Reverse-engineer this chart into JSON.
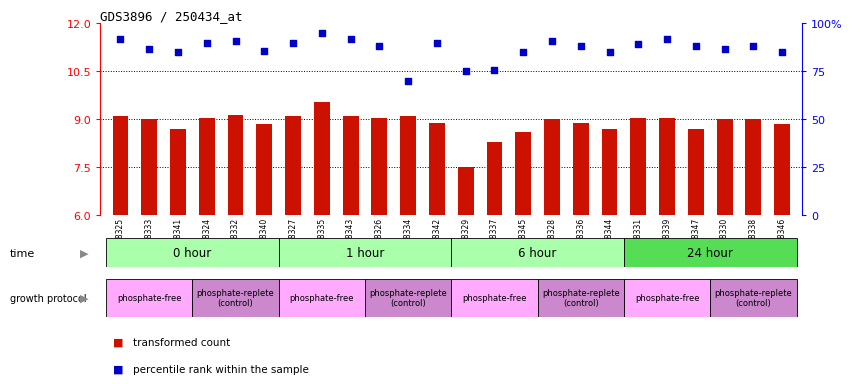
{
  "title": "GDS3896 / 250434_at",
  "samples": [
    "GSM618325",
    "GSM618333",
    "GSM618341",
    "GSM618324",
    "GSM618332",
    "GSM618340",
    "GSM618327",
    "GSM618335",
    "GSM618343",
    "GSM618326",
    "GSM618334",
    "GSM618342",
    "GSM618329",
    "GSM618337",
    "GSM618345",
    "GSM618328",
    "GSM618336",
    "GSM618344",
    "GSM618331",
    "GSM618339",
    "GSM618347",
    "GSM618330",
    "GSM618338",
    "GSM618346"
  ],
  "red_values": [
    9.1,
    9.0,
    8.7,
    9.05,
    9.15,
    8.85,
    9.1,
    9.55,
    9.1,
    9.05,
    9.1,
    8.9,
    7.5,
    8.3,
    8.6,
    9.0,
    8.9,
    8.7,
    9.05,
    9.05,
    8.7,
    9.0,
    9.0,
    8.85
  ],
  "blue_pct": [
    91.7,
    86.7,
    85.0,
    90.0,
    90.8,
    85.8,
    90.0,
    95.0,
    91.7,
    88.3,
    70.0,
    90.0,
    75.0,
    75.8,
    85.0,
    90.8,
    88.3,
    85.0,
    89.2,
    91.7,
    88.3,
    86.7,
    88.3,
    85.0
  ],
  "time_groups": [
    {
      "label": "0 hour",
      "start": 0,
      "end": 6,
      "color": "#aaffaa"
    },
    {
      "label": "1 hour",
      "start": 6,
      "end": 12,
      "color": "#aaffaa"
    },
    {
      "label": "6 hour",
      "start": 12,
      "end": 18,
      "color": "#aaffaa"
    },
    {
      "label": "24 hour",
      "start": 18,
      "end": 24,
      "color": "#55dd55"
    }
  ],
  "protocol_groups": [
    {
      "label": "phosphate-free",
      "start": 0,
      "end": 3,
      "color": "#ffaaff"
    },
    {
      "label": "phosphate-replete\n(control)",
      "start": 3,
      "end": 6,
      "color": "#cc88cc"
    },
    {
      "label": "phosphate-free",
      "start": 6,
      "end": 9,
      "color": "#ffaaff"
    },
    {
      "label": "phosphate-replete\n(control)",
      "start": 9,
      "end": 12,
      "color": "#cc88cc"
    },
    {
      "label": "phosphate-free",
      "start": 12,
      "end": 15,
      "color": "#ffaaff"
    },
    {
      "label": "phosphate-replete\n(control)",
      "start": 15,
      "end": 18,
      "color": "#cc88cc"
    },
    {
      "label": "phosphate-free",
      "start": 18,
      "end": 21,
      "color": "#ffaaff"
    },
    {
      "label": "phosphate-replete\n(control)",
      "start": 21,
      "end": 24,
      "color": "#cc88cc"
    }
  ],
  "ylim_left": [
    6,
    12
  ],
  "yticks_left": [
    6,
    7.5,
    9,
    10.5,
    12
  ],
  "ylim_right": [
    0,
    100
  ],
  "yticks_right": [
    0,
    25,
    50,
    75,
    100
  ],
  "bar_color": "#cc1100",
  "dot_color": "#0000cc",
  "bg_color": "#ffffff",
  "red_label": "transformed count",
  "blue_label": "percentile rank within the sample"
}
